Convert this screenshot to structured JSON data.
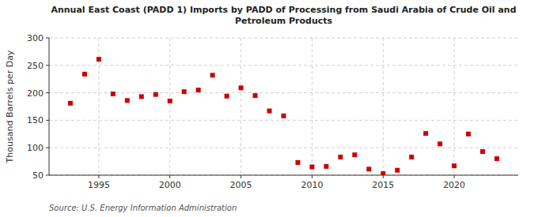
{
  "chart_data": {
    "type": "scatter",
    "title": "Annual East Coast (PADD 1) Imports by PADD of Processing from Saudi Arabia of Crude Oil and\nPetroleum Products",
    "ylabel": "Thousand Barrels per Day",
    "source": "Source: U.S. Energy Information Administration",
    "x": [
      1993,
      1994,
      1995,
      1996,
      1997,
      1998,
      1999,
      2000,
      2001,
      2002,
      2003,
      2004,
      2005,
      2006,
      2007,
      2008,
      2009,
      2010,
      2011,
      2012,
      2013,
      2014,
      2015,
      2016,
      2017,
      2018,
      2019,
      2020,
      2021,
      2022,
      2023
    ],
    "values": [
      181,
      234,
      261,
      198,
      186,
      193,
      197,
      185,
      202,
      205,
      232,
      194,
      209,
      195,
      167,
      158,
      73,
      65,
      66,
      83,
      87,
      61,
      53,
      59,
      83,
      126,
      107,
      67,
      125,
      93,
      80
    ],
    "color": "#cc0000",
    "marker": "square",
    "xlim": [
      1991.5,
      2024.5
    ],
    "xticks": [
      1995,
      2000,
      2005,
      2010,
      2015,
      2020
    ],
    "ylim": [
      50,
      300
    ],
    "yticks": [
      50,
      100,
      150,
      200,
      250,
      300
    ],
    "grid": true
  }
}
